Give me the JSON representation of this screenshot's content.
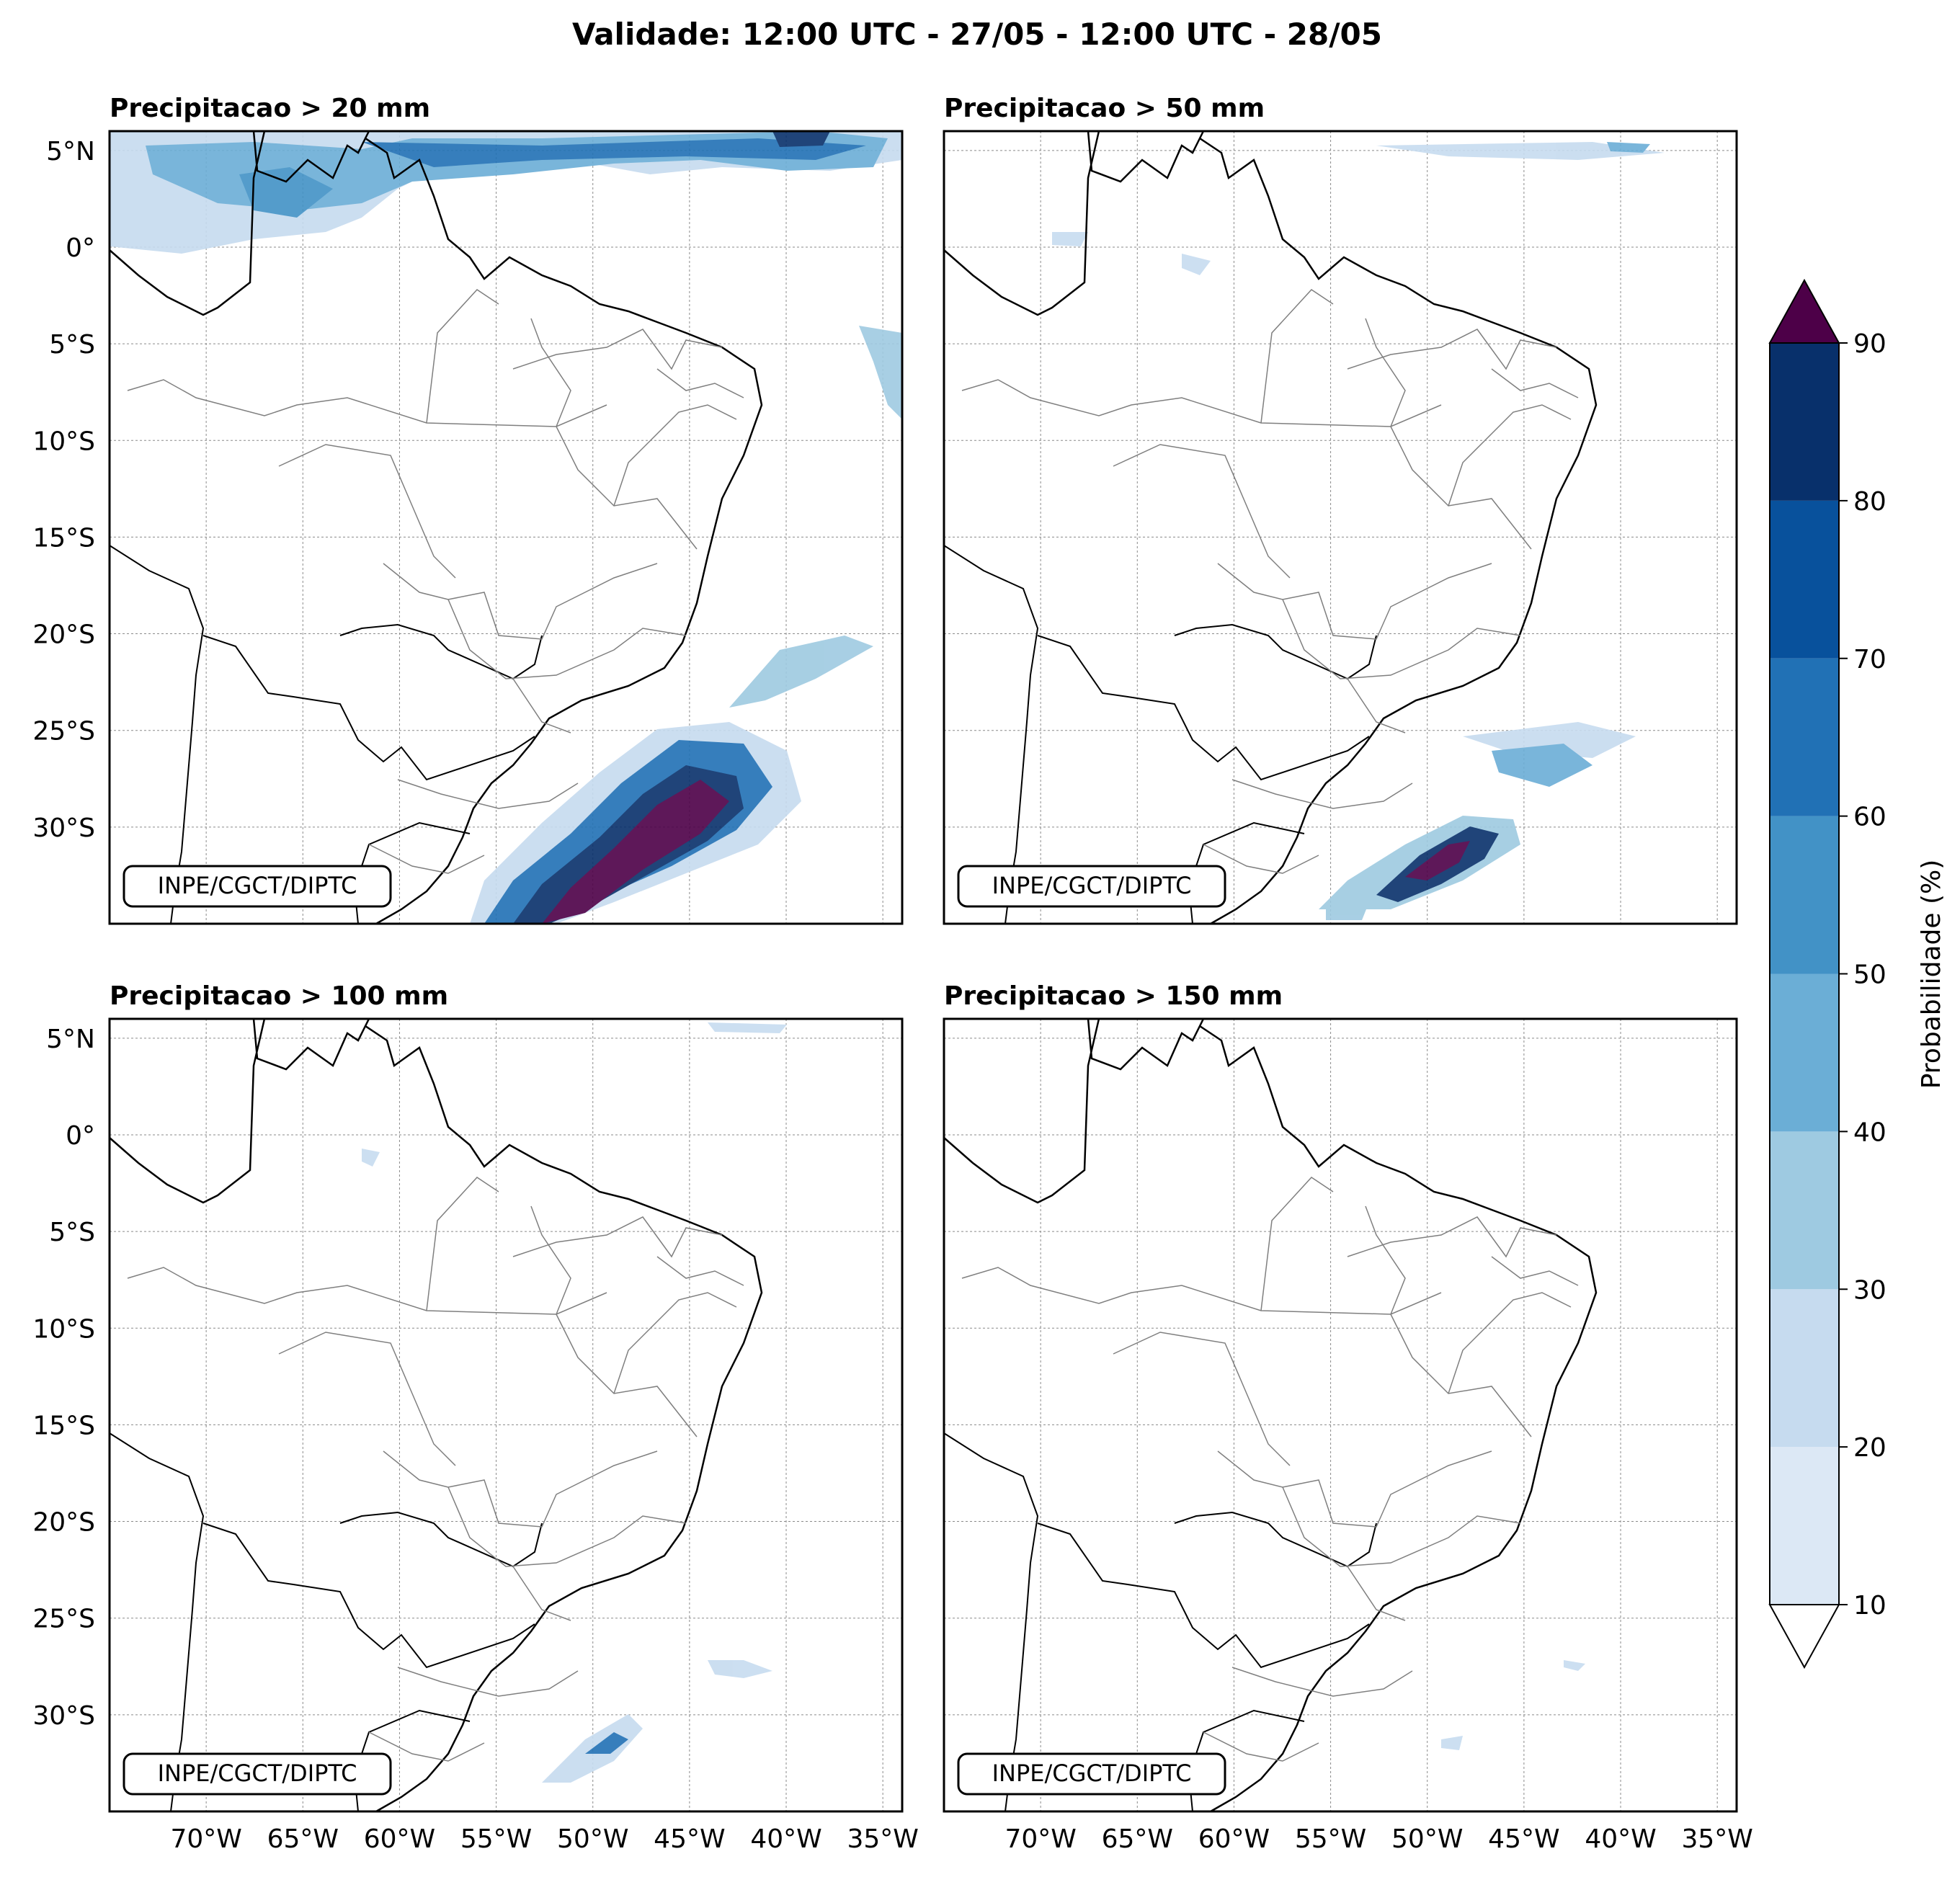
{
  "figure": {
    "title": "Validade: 12:00 UTC - 27/05 - 12:00 UTC - 28/05"
  },
  "panels": [
    {
      "id": "p20",
      "title": "Precipitacao > 20 mm",
      "credit": "INPE/CGCT/DIPTC"
    },
    {
      "id": "p50",
      "title": "Precipitacao > 50 mm",
      "credit": "INPE/CGCT/DIPTC"
    },
    {
      "id": "p100",
      "title": "Precipitacao > 100 mm",
      "credit": "INPE/CGCT/DIPTC"
    },
    {
      "id": "p150",
      "title": "Precipitacao > 150 mm",
      "credit": "INPE/CGCT/DIPTC"
    }
  ],
  "axes": {
    "lat_labels": [
      "5°N",
      "0°",
      "5°S",
      "10°S",
      "15°S",
      "20°S",
      "25°S",
      "30°S"
    ],
    "lon_labels": [
      "70°W",
      "65°W",
      "60°W",
      "55°W",
      "50°W",
      "45°W",
      "40°W",
      "35°W"
    ],
    "lat_values": [
      5,
      0,
      -5,
      -10,
      -15,
      -20,
      -25,
      -30
    ],
    "lon_values": [
      -70,
      -65,
      -60,
      -55,
      -50,
      -45,
      -40,
      -35
    ],
    "lat_range": [
      -35,
      6
    ],
    "lon_range": [
      -75,
      -34
    ]
  },
  "colorbar": {
    "label": "Probabilidade (%)",
    "ticks": [
      "10",
      "20",
      "30",
      "40",
      "50",
      "60",
      "70",
      "80",
      "90"
    ],
    "colors": [
      "#dce8f5",
      "#c6dbef",
      "#9ecae1",
      "#6baed6",
      "#4292c6",
      "#2171b5",
      "#08519c",
      "#08306b"
    ],
    "over_color": "#4d0048",
    "under_color": "#ffffff"
  },
  "map_layers": {
    "coastline_color": "#000000",
    "state_border_color": "#7f7f7f",
    "grid_color": "#8a8a8a"
  }
}
